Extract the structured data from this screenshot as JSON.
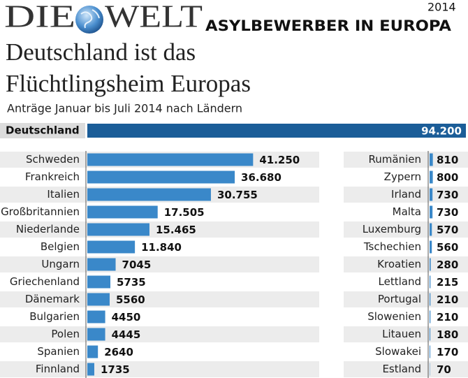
{
  "chart_data": {
    "type": "bar",
    "orientation": "horizontal",
    "brand": [
      "DIE",
      "WELT"
    ],
    "kicker": "ASYLBEWERBER IN EUROPA",
    "year": "2014",
    "title": "Deutschland ist das Flüchtlingsheim Europas",
    "subtitle": "Anträge Januar bis Juli 2014 nach Ländern",
    "xlim": [
      0,
      94200
    ],
    "highlight": {
      "category": "Deutschland",
      "value": 94200,
      "value_label": "94.200",
      "color": "#1b5d98"
    },
    "panels": [
      {
        "color": "#3a88c9",
        "categories": [
          "Schweden",
          "Frankreich",
          "Italien",
          "Großbritannien",
          "Niederlande",
          "Belgien",
          "Ungarn",
          "Griechenland",
          "Dänemark",
          "Bulgarien",
          "Polen",
          "Spanien",
          "Finnland"
        ],
        "values": [
          41250,
          36680,
          30755,
          17505,
          15465,
          11840,
          7045,
          5735,
          5560,
          4450,
          4445,
          2640,
          1735
        ],
        "value_labels": [
          "41.250",
          "36.680",
          "30.755",
          "17.505",
          "15.465",
          "11.840",
          "7045",
          "5735",
          "5560",
          "4450",
          "4445",
          "2640",
          "1735"
        ]
      },
      {
        "color": "#3a88c9",
        "categories": [
          "Rumänien",
          "Zypern",
          "Irland",
          "Malta",
          "Luxemburg",
          "Tschechien",
          "Kroatien",
          "Lettland",
          "Portugal",
          "Slowenien",
          "Litauen",
          "Slowakei",
          "Estland"
        ],
        "values": [
          810,
          800,
          730,
          730,
          570,
          560,
          280,
          215,
          210,
          210,
          180,
          170,
          70
        ],
        "value_labels": [
          "810",
          "800",
          "730",
          "730",
          "570",
          "560",
          "280",
          "215",
          "210",
          "210",
          "180",
          "170",
          "70"
        ]
      }
    ]
  }
}
